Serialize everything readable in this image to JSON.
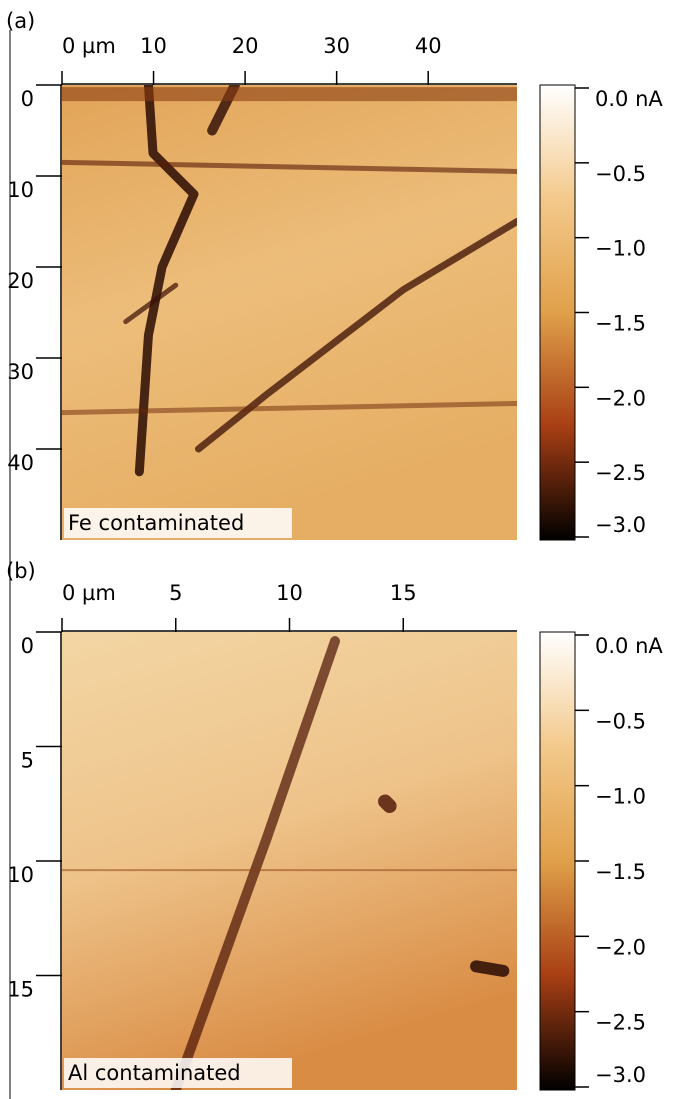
{
  "chart_data": [
    {
      "type": "heatmap",
      "panel_label": "(a)",
      "annotation": "Fe contaminated",
      "xlim": [
        0,
        49.7
      ],
      "xticks": [
        {
          "value": 0,
          "label": "0 µm"
        },
        10,
        20,
        30,
        40
      ],
      "ylim": [
        0,
        50
      ],
      "yticks": [
        0,
        10,
        20,
        30,
        40
      ],
      "colormap": [
        "#ffffff",
        "#f3c98b",
        "#e0a04a",
        "#a83f14",
        "#000000"
      ],
      "colorbar": {
        "clim": [
          -3.0,
          0.0
        ],
        "ticks": [
          {
            "value": 0,
            "label": "0.0 nA"
          },
          {
            "value": -0.5,
            "label": "−0.5"
          },
          {
            "value": -1.0,
            "label": "−1.0"
          },
          {
            "value": -1.5,
            "label": "−1.5"
          },
          {
            "value": -2.0,
            "label": "−2.0"
          },
          {
            "value": -2.5,
            "label": "−2.5"
          },
          {
            "value": -3.0,
            "label": "−3.0"
          }
        ]
      }
    },
    {
      "type": "heatmap",
      "panel_label": "(b)",
      "annotation": "Al contaminated",
      "xlim": [
        0,
        20
      ],
      "xticks": [
        {
          "value": 0,
          "label": "0 µm"
        },
        5,
        10,
        15
      ],
      "ylim": [
        0,
        20
      ],
      "yticks": [
        0,
        5,
        10,
        15
      ],
      "colormap": [
        "#ffffff",
        "#f3c98b",
        "#e0a04a",
        "#a83f14",
        "#000000"
      ],
      "colorbar": {
        "clim": [
          -3.0,
          0.0
        ],
        "ticks": [
          {
            "value": 0,
            "label": "0.0 nA"
          },
          {
            "value": -0.5,
            "label": "−0.5"
          },
          {
            "value": -1.0,
            "label": "−1.0"
          },
          {
            "value": -1.5,
            "label": "−1.5"
          },
          {
            "value": -2.0,
            "label": "−2.0"
          },
          {
            "value": -2.5,
            "label": "−2.5"
          },
          {
            "value": -3.0,
            "label": "−3.0"
          }
        ]
      }
    }
  ]
}
